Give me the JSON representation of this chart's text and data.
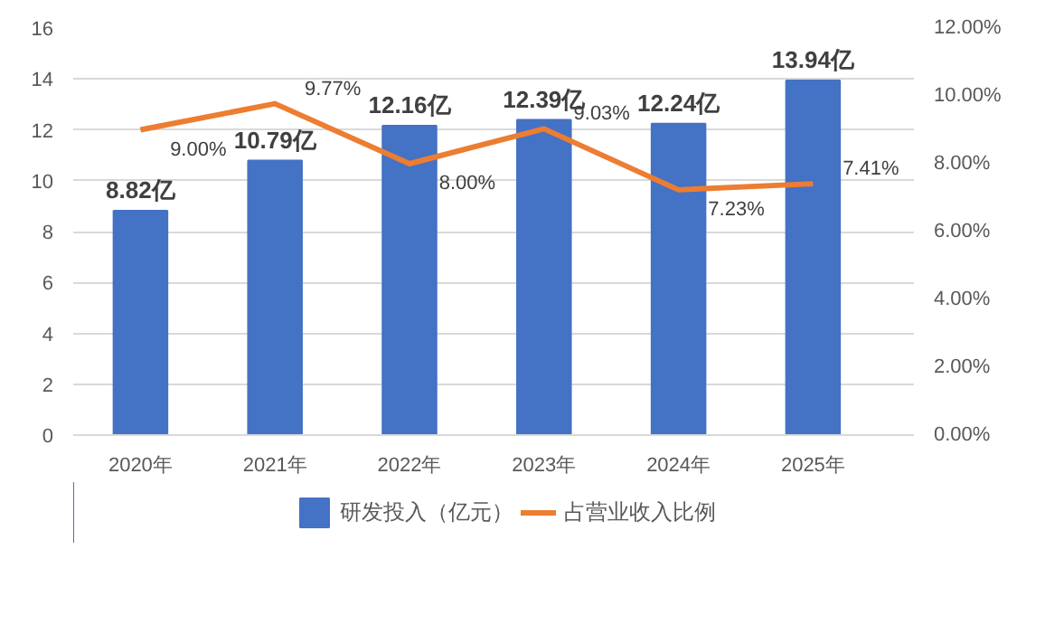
{
  "chart_data": {
    "type": "bar",
    "categories": [
      "2020年",
      "2021年",
      "2022年",
      "2023年",
      "2024年",
      "2025年"
    ],
    "series": [
      {
        "name": "研发投入（亿元）",
        "color": "#4472c4",
        "values": [
          8.82,
          10.79,
          12.16,
          12.39,
          12.24,
          13.94
        ],
        "value_labels": [
          "8.82亿",
          "10.79亿",
          "12.16亿",
          "12.39亿",
          "12.24亿",
          "13.94亿"
        ]
      },
      {
        "name": "占营业收入比例",
        "type": "line",
        "axis": "y2",
        "color": "#ed7d31",
        "values": [
          9.0,
          9.77,
          8.0,
          9.03,
          7.23,
          7.41
        ],
        "value_labels": [
          "9.00%",
          "9.77%",
          "8.00%",
          "9.03%",
          "7.23%",
          "7.41%"
        ]
      }
    ],
    "ylim": [
      0,
      16
    ],
    "yticks": [
      0,
      2,
      4,
      6,
      8,
      10,
      12,
      14,
      16
    ],
    "y2lim": [
      0,
      12
    ],
    "y2ticks": [
      {
        "value": 0,
        "label": "0.00%"
      },
      {
        "value": 2,
        "label": "2.00%"
      },
      {
        "value": 4,
        "label": "4.00%"
      },
      {
        "value": 6,
        "label": "6.00%"
      },
      {
        "value": 8,
        "label": "8.00%"
      },
      {
        "value": 10,
        "label": "10.00%"
      },
      {
        "value": 12,
        "label": "12.00%"
      }
    ],
    "grid": "y",
    "legend": "bottom",
    "marker": "none",
    "line_style": "solid"
  }
}
